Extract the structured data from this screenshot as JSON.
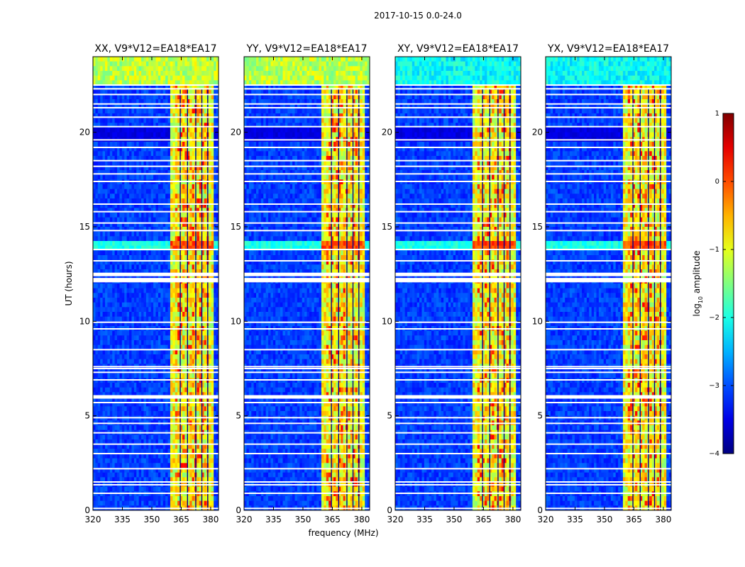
{
  "chart_data": {
    "type": "heatmap",
    "suptitle": "2017-10-15 0.0-24.0",
    "xlabel": "frequency (MHz)",
    "ylabel": "UT (hours)",
    "xlim": [
      320,
      384
    ],
    "ylim": [
      0,
      24
    ],
    "xticks": [
      320,
      335,
      350,
      365,
      380
    ],
    "yticks": [
      0,
      5,
      10,
      15,
      20
    ],
    "colorbar": {
      "label": "log10 amplitude",
      "range": [
        -4,
        1
      ],
      "ticks": [
        "1",
        "0",
        "−1",
        "−2",
        "−3",
        "−4"
      ],
      "colormap": "jet"
    },
    "panels": [
      {
        "title": "XX, V9*V12=EA18*EA17",
        "pol": "XX"
      },
      {
        "title": "YY, V9*V12=EA18*EA17",
        "pol": "YY"
      },
      {
        "title": "XY, V9*V12=EA18*EA17",
        "pol": "XY"
      },
      {
        "title": "YX, V9*V12=EA18*EA17",
        "pol": "YX"
      }
    ],
    "signal_band_mhz": [
      360,
      381
    ],
    "early_band_top_hours": [
      22.5,
      24
    ]
  }
}
